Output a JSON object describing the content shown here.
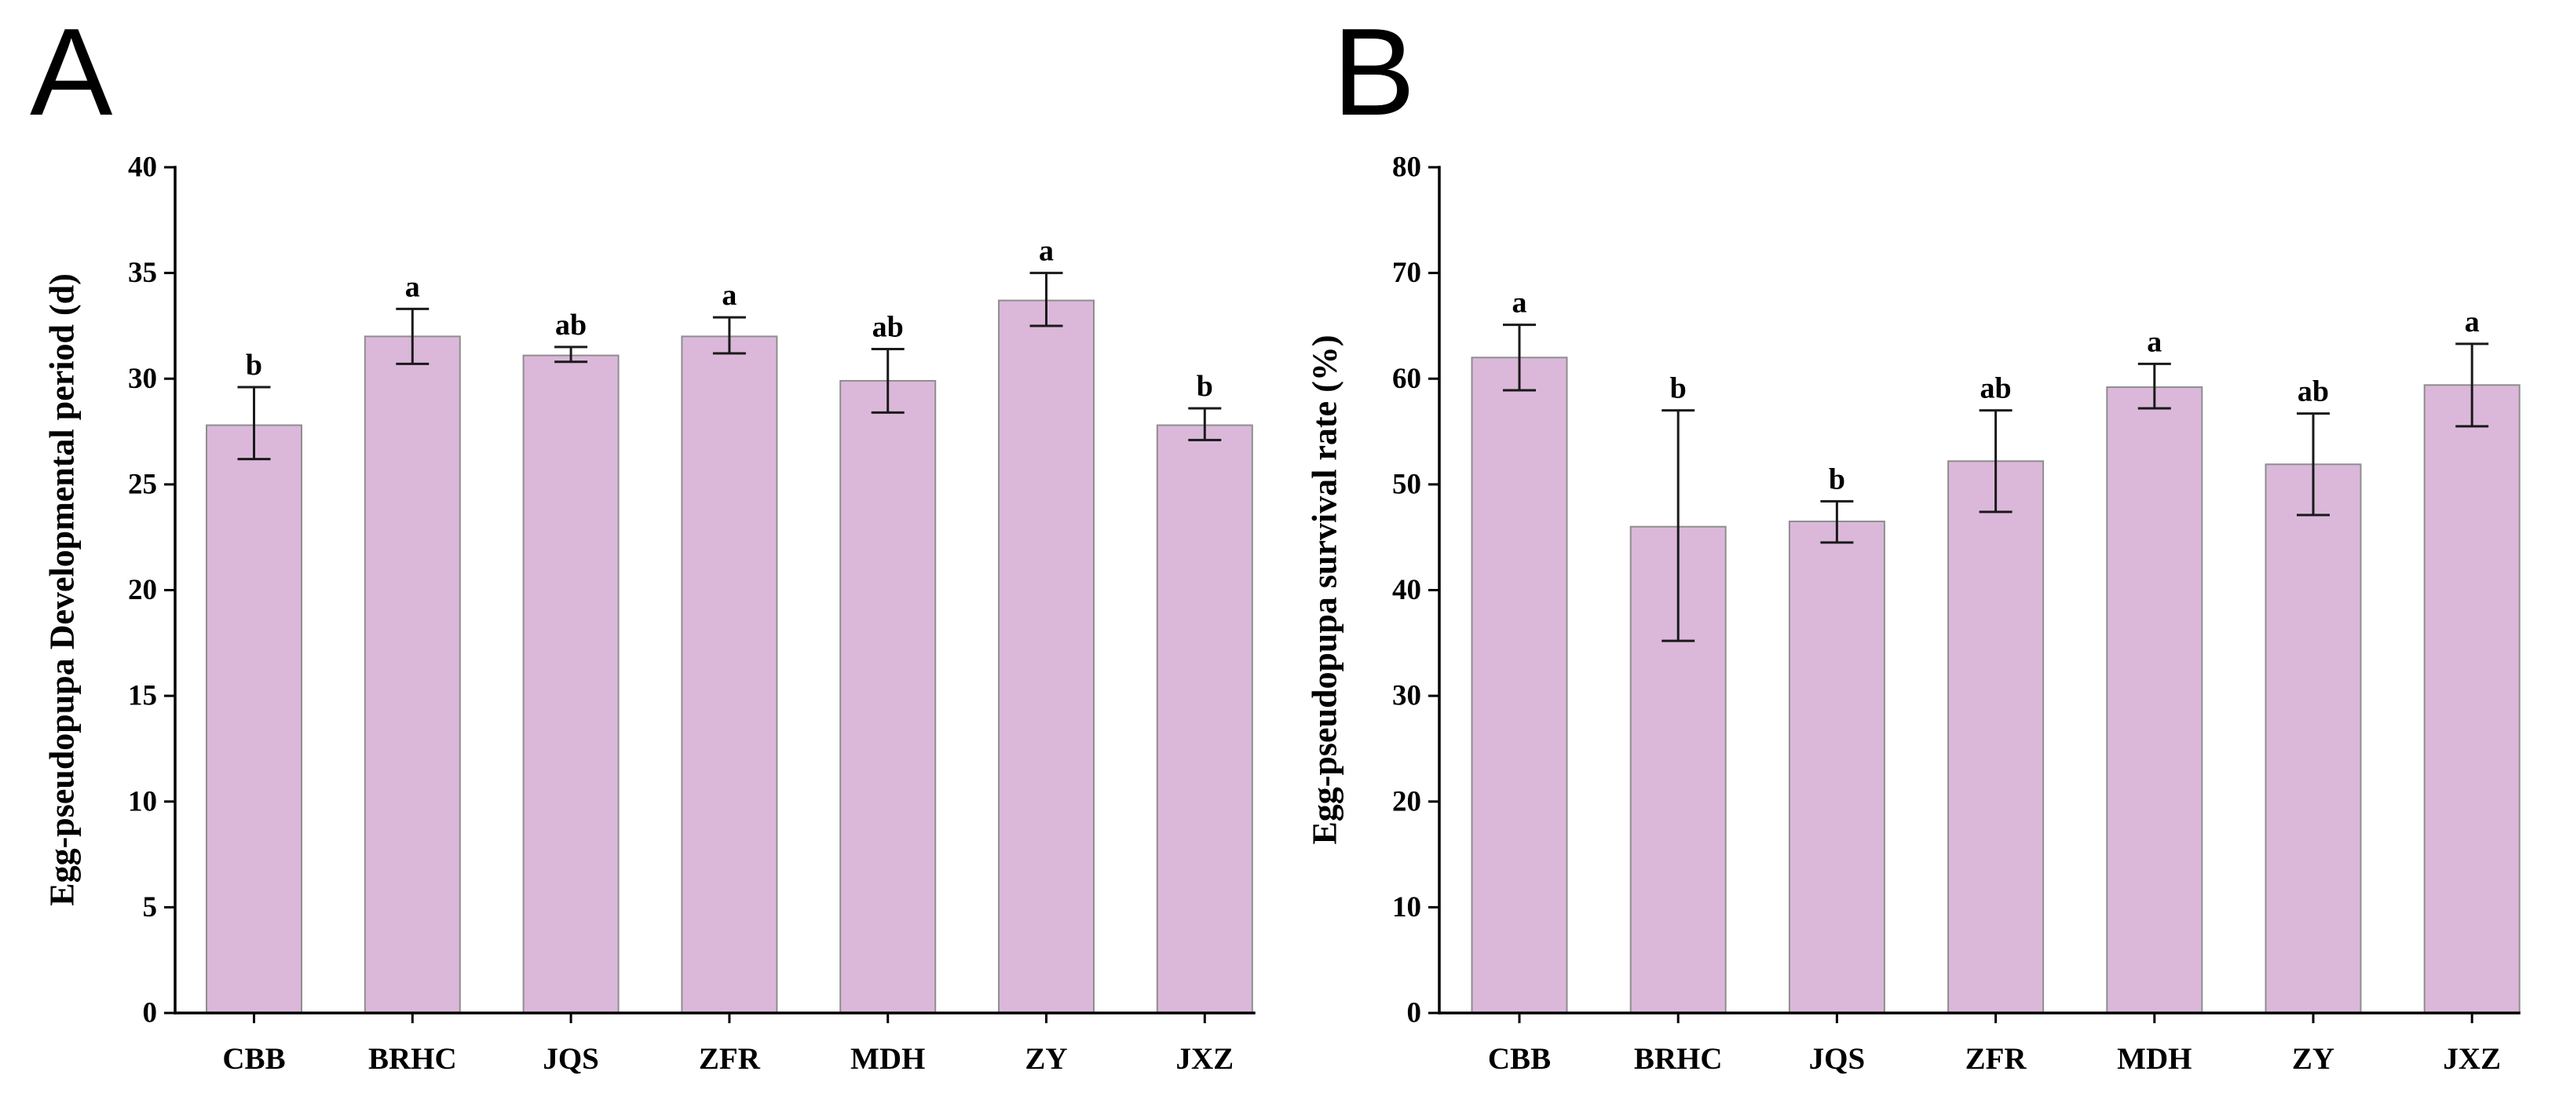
{
  "chart_data": [
    {
      "type": "bar",
      "panel_label": "A",
      "title": "",
      "xlabel": "",
      "ylabel": "Egg-pseudopupa Developmental period (d)",
      "ylim": [
        0,
        40
      ],
      "yticks": [
        0,
        5,
        10,
        15,
        20,
        25,
        30,
        35,
        40
      ],
      "categories": [
        "CBB",
        "BRHC",
        "JQS",
        "ZFR",
        "MDH",
        "ZY",
        "JXZ"
      ],
      "values": [
        27.8,
        32.0,
        31.1,
        32.0,
        29.9,
        33.7,
        27.8
      ],
      "error_low": [
        26.2,
        30.7,
        30.8,
        31.2,
        28.4,
        32.5,
        27.1
      ],
      "error_high": [
        29.6,
        33.3,
        31.5,
        32.9,
        31.4,
        35.0,
        28.6
      ],
      "significance": [
        "b",
        "a",
        "ab",
        "a",
        "ab",
        "a",
        "b"
      ],
      "bar_color": "#dbb8da",
      "grid": false,
      "legend": "none"
    },
    {
      "type": "bar",
      "panel_label": "B",
      "title": "",
      "xlabel": "",
      "ylabel": "Egg-pseudopupa survival rate (%)",
      "ylim": [
        0,
        80
      ],
      "yticks": [
        0,
        10,
        20,
        30,
        40,
        50,
        60,
        70,
        80
      ],
      "categories": [
        "CBB",
        "BRHC",
        "JQS",
        "ZFR",
        "MDH",
        "ZY",
        "JXZ"
      ],
      "values": [
        62.0,
        46.0,
        46.5,
        52.2,
        59.2,
        51.9,
        59.4
      ],
      "error_low": [
        58.9,
        35.2,
        44.5,
        47.4,
        57.2,
        47.1,
        55.5
      ],
      "error_high": [
        65.1,
        57.0,
        48.4,
        57.0,
        61.4,
        56.7,
        63.3
      ],
      "significance": [
        "a",
        "b",
        "b",
        "ab",
        "a",
        "ab",
        "a"
      ],
      "bar_color": "#dbb8da",
      "grid": false,
      "legend": "none"
    }
  ]
}
